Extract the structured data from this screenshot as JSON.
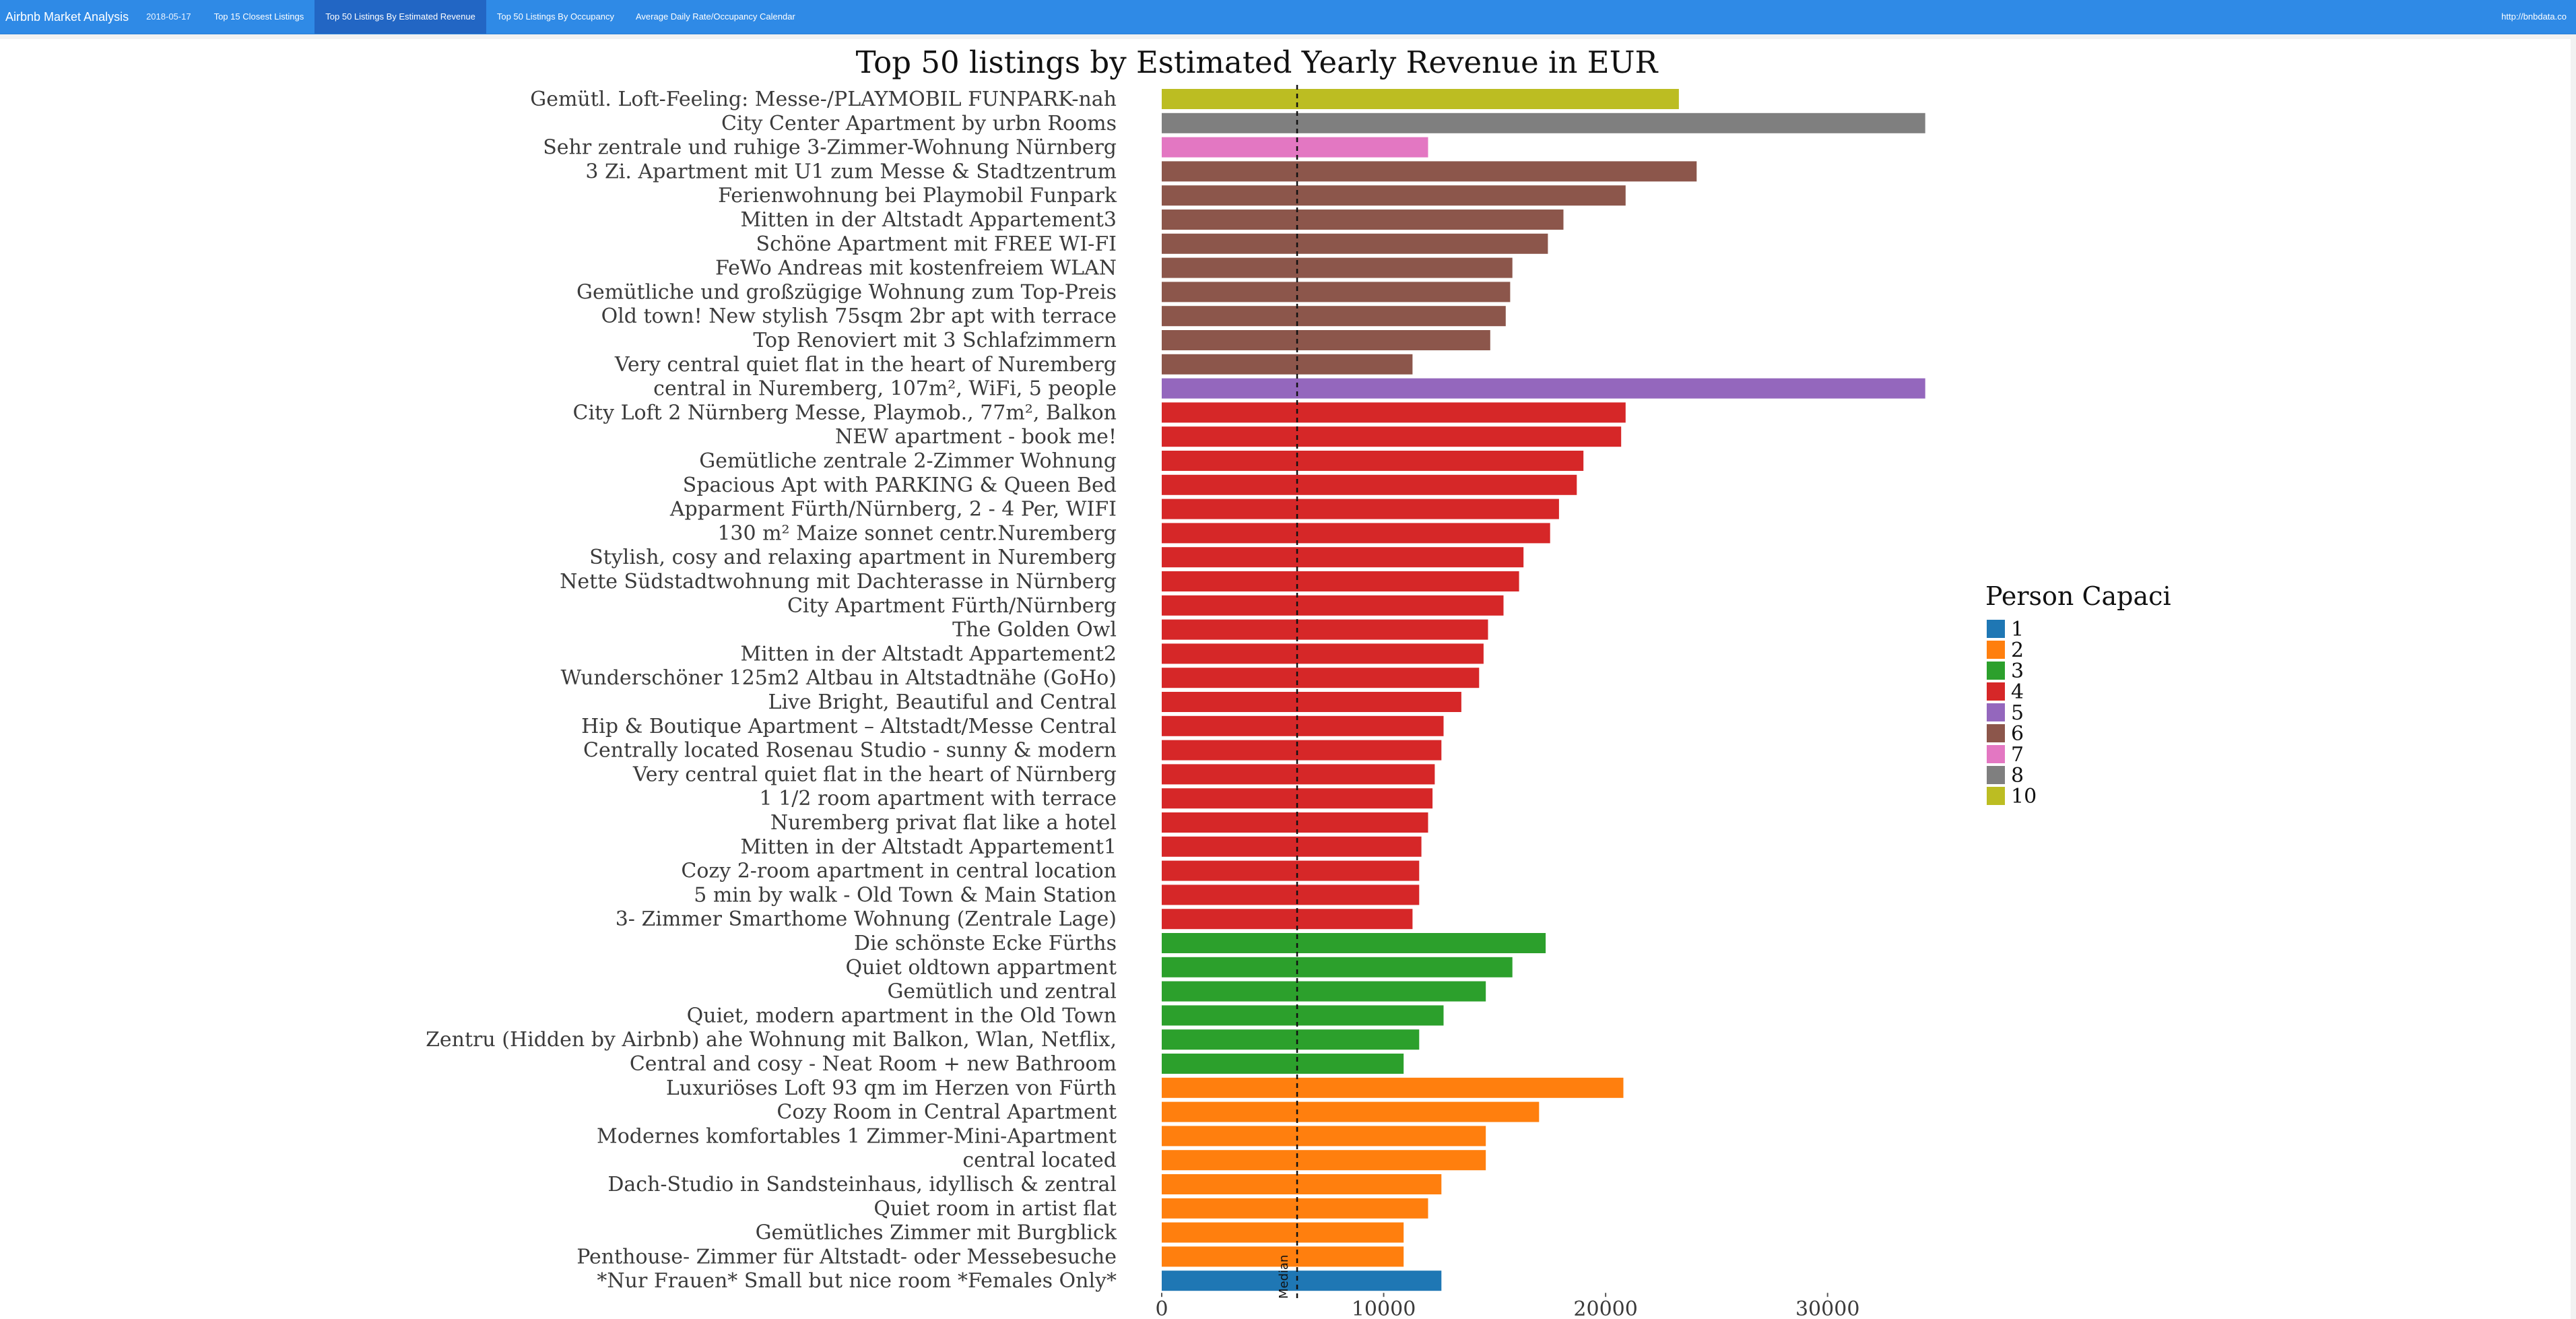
{
  "navbar": {
    "brand": "Airbnb Market Analysis",
    "date": "2018-05-17",
    "tabs": [
      {
        "label": "Top 15 Closest Listings",
        "active": false
      },
      {
        "label": "Top 50 Listings By Estimated Revenue",
        "active": true
      },
      {
        "label": "Top 50 Listings By Occupancy",
        "active": false
      },
      {
        "label": "Average Daily Rate/Occupancy Calendar",
        "active": false
      }
    ],
    "link": "http://bnbdata.co"
  },
  "chart_data": {
    "type": "bar",
    "orientation": "horizontal",
    "title": "Top 50 listings by Estimated Yearly Revenue in EUR",
    "xlabel": "",
    "ylabel": "",
    "xlim": [
      0,
      34500
    ],
    "xticks": [
      0,
      10000,
      20000,
      30000
    ],
    "median": {
      "label": "Median",
      "value": 6100
    },
    "legend": {
      "title": "Person Capaci",
      "position": "right",
      "items": [
        {
          "label": "1",
          "color": "#1f77b4"
        },
        {
          "label": "2",
          "color": "#ff7f0e"
        },
        {
          "label": "3",
          "color": "#2ca02c"
        },
        {
          "label": "4",
          "color": "#d62728"
        },
        {
          "label": "5",
          "color": "#9467bd"
        },
        {
          "label": "6",
          "color": "#8c564b"
        },
        {
          "label": "7",
          "color": "#e377c2"
        },
        {
          "label": "8",
          "color": "#7f7f7f"
        },
        {
          "label": "10",
          "color": "#bcbd22"
        }
      ]
    },
    "bars": [
      {
        "label": "Gemütl. Loft-Feeling: Messe-/PLAYMOBIL FUNPARK-nah",
        "value": 23300,
        "capacity": "10"
      },
      {
        "label": "City Center Apartment by urbn Rooms",
        "value": 34400,
        "capacity": "8"
      },
      {
        "label": "Sehr zentrale und ruhige 3-Zimmer-Wohnung Nürnberg",
        "value": 12000,
        "capacity": "7"
      },
      {
        "label": "3 Zi. Apartment mit U1 zum Messe & Stadtzentrum",
        "value": 24100,
        "capacity": "6"
      },
      {
        "label": "Ferienwohnung bei Playmobil Funpark",
        "value": 20900,
        "capacity": "6"
      },
      {
        "label": "Mitten in der Altstadt Appartement3",
        "value": 18100,
        "capacity": "6"
      },
      {
        "label": "Schöne Apartment mit FREE WI-FI",
        "value": 17400,
        "capacity": "6"
      },
      {
        "label": "FeWo Andreas mit kostenfreiem WLAN",
        "value": 15800,
        "capacity": "6"
      },
      {
        "label": "Gemütliche und großzügige Wohnung zum Top-Preis",
        "value": 15700,
        "capacity": "6"
      },
      {
        "label": "Old town! New stylish 75sqm 2br apt with terrace",
        "value": 15500,
        "capacity": "6"
      },
      {
        "label": "Top Renoviert mit 3 Schlafzimmern",
        "value": 14800,
        "capacity": "6"
      },
      {
        "label": "Very central quiet flat in the heart of Nuremberg",
        "value": 11300,
        "capacity": "6"
      },
      {
        "label": "central in Nuremberg, 107m², WiFi, 5 people",
        "value": 34400,
        "capacity": "5"
      },
      {
        "label": "City Loft 2 Nürnberg Messe, Playmob., 77m², Balkon",
        "value": 20900,
        "capacity": "4"
      },
      {
        "label": "NEW apartment - book me!",
        "value": 20700,
        "capacity": "4"
      },
      {
        "label": "Gemütliche zentrale 2-Zimmer Wohnung",
        "value": 19000,
        "capacity": "4"
      },
      {
        "label": "Spacious Apt with PARKING & Queen Bed",
        "value": 18700,
        "capacity": "4"
      },
      {
        "label": "Apparment Fürth/Nürnberg,  2 - 4 Per, WIFI",
        "value": 17900,
        "capacity": "4"
      },
      {
        "label": "130 m² Maize sonnet centr.Nuremberg",
        "value": 17500,
        "capacity": "4"
      },
      {
        "label": "Stylish, cosy and relaxing apartment in Nuremberg",
        "value": 16300,
        "capacity": "4"
      },
      {
        "label": "Nette Südstadtwohnung mit Dachterasse in Nürnberg",
        "value": 16100,
        "capacity": "4"
      },
      {
        "label": "City Apartment Fürth/Nürnberg",
        "value": 15400,
        "capacity": "4"
      },
      {
        "label": "The Golden Owl",
        "value": 14700,
        "capacity": "4"
      },
      {
        "label": "Mitten in der Altstadt Appartement2",
        "value": 14500,
        "capacity": "4"
      },
      {
        "label": "Wunderschöner 125m2 Altbau in Altstadtnähe (GoHo)",
        "value": 14300,
        "capacity": "4"
      },
      {
        "label": "Live Bright, Beautiful and Central",
        "value": 13500,
        "capacity": "4"
      },
      {
        "label": "Hip & Boutique Apartment – Altstadt/Messe Central",
        "value": 12700,
        "capacity": "4"
      },
      {
        "label": "Centrally located Rosenau Studio - sunny & modern",
        "value": 12600,
        "capacity": "4"
      },
      {
        "label": "Very central quiet flat in the heart of Nürnberg",
        "value": 12300,
        "capacity": "4"
      },
      {
        "label": "1 1/2 room apartment with terrace",
        "value": 12200,
        "capacity": "4"
      },
      {
        "label": "Nuremberg privat flat like a hotel",
        "value": 12000,
        "capacity": "4"
      },
      {
        "label": "Mitten in der Altstadt Appartement1",
        "value": 11700,
        "capacity": "4"
      },
      {
        "label": "Cozy 2-room apartment in central location",
        "value": 11600,
        "capacity": "4"
      },
      {
        "label": "5 min by walk - Old Town & Main Station",
        "value": 11600,
        "capacity": "4"
      },
      {
        "label": "3- Zimmer Smarthome Wohnung (Zentrale Lage)",
        "value": 11300,
        "capacity": "4"
      },
      {
        "label": "Die schönste Ecke Fürths",
        "value": 17300,
        "capacity": "3"
      },
      {
        "label": "Quiet oldtown appartment",
        "value": 15800,
        "capacity": "3"
      },
      {
        "label": "Gemütlich und zentral",
        "value": 14600,
        "capacity": "3"
      },
      {
        "label": "Quiet, modern apartment in the Old Town",
        "value": 12700,
        "capacity": "3"
      },
      {
        "label": "Zentru (Hidden by Airbnb) ahe Wohnung mit Balkon, Wlan, Netflix,",
        "value": 11600,
        "capacity": "3"
      },
      {
        "label": "Central and cosy -  Neat Room +  new Bathroom",
        "value": 10900,
        "capacity": "3"
      },
      {
        "label": "Luxuriöses Loft 93 qm im Herzen von Fürth",
        "value": 20800,
        "capacity": "2"
      },
      {
        "label": "Cozy Room in Central Apartment",
        "value": 17000,
        "capacity": "2"
      },
      {
        "label": "Modernes komfortables 1 Zimmer-Mini-Apartment",
        "value": 14600,
        "capacity": "2"
      },
      {
        "label": "central located",
        "value": 14600,
        "capacity": "2"
      },
      {
        "label": "Dach-Studio in Sandsteinhaus, idyllisch & zentral",
        "value": 12600,
        "capacity": "2"
      },
      {
        "label": "Quiet room in artist flat",
        "value": 12000,
        "capacity": "2"
      },
      {
        "label": "Gemütliches Zimmer mit Burgblick",
        "value": 10900,
        "capacity": "2"
      },
      {
        "label": "Penthouse- Zimmer für Altstadt- oder Messebesuche",
        "value": 10900,
        "capacity": "2"
      },
      {
        "label": "*Nur Frauen* Small but nice room *Females Only*",
        "value": 12600,
        "capacity": "1"
      }
    ]
  }
}
